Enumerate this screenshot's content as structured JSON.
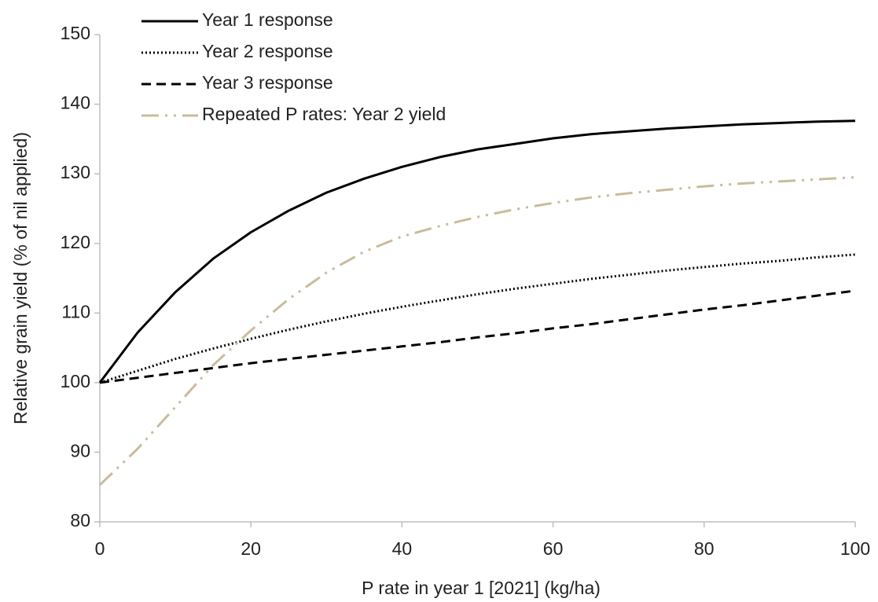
{
  "chart_data": {
    "type": "line",
    "xlabel": "P rate in year 1 [2021] (kg/ha)",
    "ylabel": "Relative grain yield (% of nil applied)",
    "x": [
      0,
      5,
      10,
      15,
      20,
      25,
      30,
      35,
      40,
      45,
      50,
      55,
      60,
      65,
      70,
      75,
      80,
      85,
      90,
      95,
      100
    ],
    "series": [
      {
        "name": "Year 1 response",
        "color": "#000000",
        "dash": "solid",
        "values": [
          100,
          107.2,
          113.0,
          117.8,
          121.6,
          124.7,
          127.3,
          129.3,
          131.0,
          132.4,
          133.5,
          134.3,
          135.1,
          135.7,
          136.1,
          136.5,
          136.8,
          137.1,
          137.3,
          137.5,
          137.6
        ]
      },
      {
        "name": "Year 2 response",
        "color": "#000000",
        "dash": "dotted",
        "values": [
          100,
          101.7,
          103.4,
          104.9,
          106.3,
          107.6,
          108.8,
          109.9,
          110.9,
          111.8,
          112.7,
          113.5,
          114.2,
          114.9,
          115.5,
          116.1,
          116.6,
          117.1,
          117.5,
          118.0,
          118.4
        ]
      },
      {
        "name": "Year 3 response",
        "color": "#000000",
        "dash": "dashed",
        "values": [
          100,
          100.7,
          101.4,
          102.1,
          102.8,
          103.4,
          104.0,
          104.6,
          105.2,
          105.8,
          106.5,
          107.1,
          107.8,
          108.4,
          109.1,
          109.8,
          110.5,
          111.1,
          111.8,
          112.5,
          113.2
        ]
      },
      {
        "name": "Repeated P rates: Year 2 yield",
        "color": "#c9bc9c",
        "dash": "dashdotdot",
        "values": [
          85.3,
          90.5,
          96.5,
          102.5,
          107.5,
          112.0,
          115.8,
          118.8,
          121.0,
          122.5,
          123.8,
          124.9,
          125.8,
          126.6,
          127.2,
          127.7,
          128.2,
          128.6,
          128.9,
          129.2,
          129.5
        ]
      }
    ],
    "xlim": [
      0,
      100
    ],
    "xticks": [
      0,
      20,
      40,
      60,
      80,
      100
    ],
    "ylim": [
      80,
      150
    ],
    "yticks": [
      80,
      90,
      100,
      110,
      120,
      130,
      140,
      150
    ],
    "grid": false,
    "legend": "top-left"
  }
}
